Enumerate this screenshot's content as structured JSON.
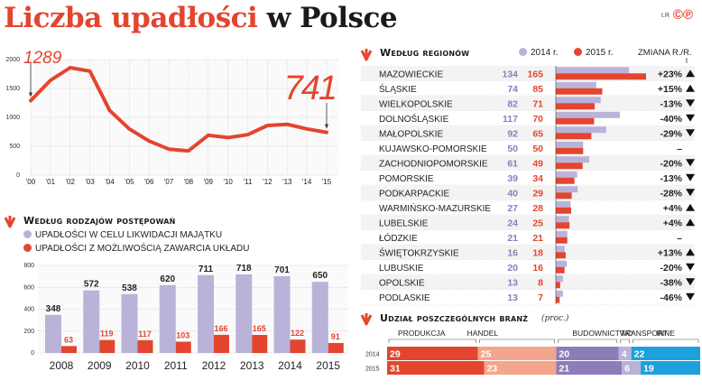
{
  "title_red": "Liczba upadłości",
  "title_black": "w Polsce",
  "credit": "t.R",
  "logo": "©℗",
  "colors": {
    "red": "#e3452f",
    "lilac": "#b9b3d9",
    "blue": "#1da1dc",
    "salmon": "#f4a58b",
    "purple": "#8c7db8",
    "grey": "#9a9a9a"
  },
  "icons": {
    "section_arrow": "down-arrow-icon",
    "up": "triangle-up-icon",
    "down": "triangle-down-icon"
  },
  "chart_data": [
    {
      "type": "line",
      "name": "annual-bankruptcies",
      "x": [
        "'00",
        "'01",
        "'02",
        "'03",
        "'04",
        "'05",
        "'06",
        "'07",
        "'08",
        "'09",
        "'10",
        "'11",
        "'12",
        "'13",
        "'14",
        "'15"
      ],
      "y": [
        1289,
        1640,
        1860,
        1800,
        1120,
        800,
        590,
        450,
        420,
        690,
        650,
        700,
        860,
        880,
        800,
        741
      ],
      "ylim": [
        0,
        2000
      ],
      "yticks": [
        0,
        500,
        1000,
        1500,
        2000
      ],
      "annotations": [
        {
          "x": "'00",
          "label": "1289"
        },
        {
          "x": "'15",
          "label": "741"
        }
      ],
      "grid": true
    },
    {
      "type": "bar",
      "name": "by-procedure",
      "title": "Według rodzajów postępowań",
      "categories": [
        "2008",
        "2009",
        "2010",
        "2011",
        "2012",
        "2013",
        "2014",
        "2015"
      ],
      "series": [
        {
          "name": "UPADŁOŚCI W CELU LIKWIDACJI MAJĄTKU",
          "values": [
            348,
            572,
            538,
            620,
            711,
            718,
            701,
            650
          ]
        },
        {
          "name": "UPADŁOŚCI Z MOŻLIWOŚCIĄ ZAWARCIA UKŁADU",
          "values": [
            63,
            119,
            117,
            103,
            166,
            165,
            122,
            91
          ]
        }
      ],
      "ylim": [
        0,
        800
      ],
      "yticks": [
        0,
        200,
        400,
        600,
        800
      ],
      "grid": true
    },
    {
      "type": "bar",
      "name": "by-region",
      "title": "Według regionów",
      "legend": [
        "2014 r.",
        "2015 r."
      ],
      "change_header": "ZMIANA R./R.",
      "categories": [
        "MAZOWIECKIE",
        "ŚLĄSKIE",
        "WIELKOPOLSKIE",
        "DOLNOŚLĄSKIE",
        "MAŁOPOLSKIE",
        "KUJAWSKO-POMORSKIE",
        "ZACHODNIOPOMORSKIE",
        "POMORSKIE",
        "PODKARPACKIE",
        "WARMIŃSKO-MAZURSKIE",
        "LUBELSKIE",
        "ŁÓDZKIE",
        "ŚWIĘTOKRZYSKIE",
        "LUBUSKIE",
        "OPOLSKIE",
        "PODLASKIE"
      ],
      "series": [
        {
          "name": "2014 r.",
          "values": [
            134,
            74,
            82,
            117,
            92,
            50,
            61,
            39,
            40,
            27,
            24,
            21,
            16,
            20,
            13,
            13
          ]
        },
        {
          "name": "2015 r.",
          "values": [
            165,
            85,
            71,
            70,
            65,
            50,
            49,
            34,
            29,
            28,
            25,
            21,
            18,
            16,
            8,
            7
          ]
        }
      ],
      "changes": [
        "+23%",
        "+15%",
        "-13%",
        "-40%",
        "-29%",
        "–",
        "-20%",
        "-13%",
        "-28%",
        "+4%",
        "+4%",
        "–",
        "+13%",
        "-20%",
        "-38%",
        "-46%"
      ],
      "change_dirs": [
        "up",
        "up",
        "down",
        "down",
        "down",
        "none",
        "down",
        "down",
        "down",
        "up",
        "up",
        "none",
        "up",
        "down",
        "down",
        "down"
      ]
    },
    {
      "type": "bar",
      "name": "by-industry",
      "title": "Udział poszczególnych branż",
      "subtitle": "(proc.)",
      "categories": [
        "2014",
        "2015"
      ],
      "segments": [
        "PRODUKCJA",
        "HANDEL",
        "BUDOWNICTWO",
        "TRANSPORT",
        "INNE"
      ],
      "series": [
        {
          "name": "PRODUKCJA",
          "values": [
            29,
            31
          ]
        },
        {
          "name": "HANDEL",
          "values": [
            25,
            23
          ]
        },
        {
          "name": "BUDOWNICTWO",
          "values": [
            20,
            21
          ]
        },
        {
          "name": "TRANSPORT",
          "values": [
            4,
            6
          ]
        },
        {
          "name": "INNE",
          "values": [
            22,
            19
          ]
        }
      ],
      "stacked": true
    }
  ]
}
